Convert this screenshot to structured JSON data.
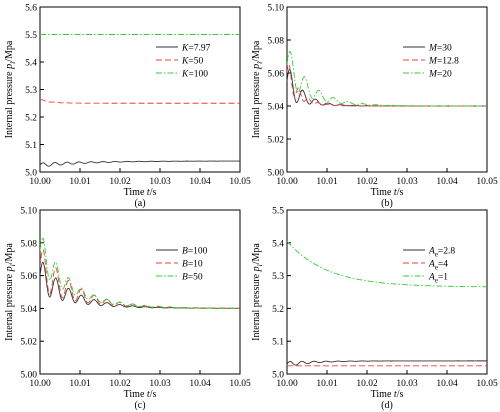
{
  "chart_data": [
    {
      "type": "line",
      "caption": "(a)",
      "xlabel": {
        "pre": "Time ",
        "var": "t",
        "post": "/s"
      },
      "ylabel": {
        "pre": "Internal pressure ",
        "var": "p",
        "sub": "i",
        "post": "/Mpa"
      },
      "xlim": [
        10.0,
        10.05
      ],
      "ylim": [
        5.0,
        5.6
      ],
      "xticks": [
        "10.00",
        "10.01",
        "10.02",
        "10.03",
        "10.04",
        "10.05"
      ],
      "yticks": [
        "5.0",
        "5.1",
        "5.2",
        "5.3",
        "5.4",
        "5.5",
        "5.6"
      ],
      "legend_position": "right-upper",
      "series": [
        {
          "var": "K",
          "val": "7.97",
          "color": "#333333",
          "dash": "",
          "final": 5.04,
          "start": 5.025,
          "amp": 0.008,
          "decay": 0.012,
          "period": 0.003
        },
        {
          "var": "K",
          "val": "50",
          "color": "#e8413c",
          "dash": "6,3",
          "final": 5.25,
          "start": 5.262,
          "amp": 0.003,
          "decay": 0.003,
          "period": 0.003
        },
        {
          "var": "K",
          "val": "100",
          "color": "#33cc33",
          "dash": "6,2,1.5,2",
          "final": 5.5,
          "start": 5.5,
          "amp": 0,
          "decay": 0.003,
          "period": 0.003
        }
      ]
    },
    {
      "type": "line",
      "caption": "(b)",
      "xlabel": {
        "pre": "Time ",
        "var": "t",
        "post": "/s"
      },
      "ylabel": {
        "pre": "Internal pressure ",
        "var": "p",
        "sub": "i",
        "post": "/Mpa"
      },
      "xlim": [
        10.0,
        10.05
      ],
      "ylim": [
        5.0,
        5.1
      ],
      "xticks": [
        "10.00",
        "10.01",
        "10.02",
        "10.03",
        "10.04",
        "10.05"
      ],
      "yticks": [
        "5.00",
        "5.02",
        "5.04",
        "5.06",
        "5.08",
        "5.10"
      ],
      "legend_position": "right-upper",
      "series": [
        {
          "var": "M",
          "val": "30",
          "color": "#333333",
          "dash": "",
          "final": 5.04,
          "start": 5.055,
          "amp": 0.012,
          "decay": 0.004,
          "period": 0.0032
        },
        {
          "var": "M",
          "val": "12.8",
          "color": "#e8413c",
          "dash": "6,3",
          "final": 5.04,
          "start": 5.06,
          "amp": 0.01,
          "decay": 0.003,
          "period": 0.0024
        },
        {
          "var": "M",
          "val": "20",
          "color": "#33cc33",
          "dash": "6,2,1.5,2",
          "final": 5.04,
          "start": 5.065,
          "amp": 0.013,
          "decay": 0.006,
          "period": 0.0036
        }
      ]
    },
    {
      "type": "line",
      "caption": "(c)",
      "xlabel": {
        "pre": "Time ",
        "var": "t",
        "post": "/s"
      },
      "ylabel": {
        "pre": "Internal pressure ",
        "var": "p",
        "sub": "i",
        "post": "/Mpa"
      },
      "xlim": [
        10.0,
        10.05
      ],
      "ylim": [
        5.0,
        5.1
      ],
      "xticks": [
        "10.00",
        "10.01",
        "10.02",
        "10.03",
        "10.04",
        "10.05"
      ],
      "yticks": [
        "5.00",
        "5.02",
        "5.04",
        "5.06",
        "5.08",
        "5.10"
      ],
      "legend_position": "right-upper",
      "series": [
        {
          "var": "B",
          "val": "100",
          "color": "#333333",
          "dash": "",
          "final": 5.04,
          "start": 5.06,
          "amp": 0.011,
          "decay": 0.008,
          "period": 0.0032
        },
        {
          "var": "B",
          "val": "10",
          "color": "#e8413c",
          "dash": "6,3",
          "final": 5.04,
          "start": 5.065,
          "amp": 0.014,
          "decay": 0.009,
          "period": 0.0032
        },
        {
          "var": "B",
          "val": "50",
          "color": "#33cc33",
          "dash": "6,2,1.5,2",
          "final": 5.04,
          "start": 5.075,
          "amp": 0.012,
          "decay": 0.008,
          "period": 0.0032
        }
      ]
    },
    {
      "type": "line",
      "caption": "(d)",
      "xlabel": {
        "pre": "Time ",
        "var": "t",
        "post": "/s"
      },
      "ylabel": {
        "pre": "Internal pressure ",
        "var": "p",
        "sub": "i",
        "post": "/Mpa"
      },
      "xlim": [
        10.0,
        10.05
      ],
      "ylim": [
        5.0,
        5.5
      ],
      "xticks": [
        "10.00",
        "10.01",
        "10.02",
        "10.03",
        "10.04",
        "10.05"
      ],
      "yticks": [
        "5.0",
        "5.1",
        "5.2",
        "5.3",
        "5.4",
        "5.5"
      ],
      "legend_position": "right-upper",
      "series": [
        {
          "var": "A",
          "sub": "e",
          "val": "2.8",
          "color": "#333333",
          "dash": "",
          "final": 5.04,
          "start": 5.03,
          "amp": 0.008,
          "decay": 0.007,
          "period": 0.003
        },
        {
          "var": "A",
          "sub": "e",
          "val": "4",
          "color": "#e8413c",
          "dash": "6,3",
          "final": 5.025,
          "start": 5.025,
          "amp": 0,
          "decay": 0.005,
          "period": 0.003
        },
        {
          "var": "A",
          "sub": "e",
          "val": "1",
          "color": "#33cc33",
          "dash": "6,2,1.5,2",
          "final": 5.265,
          "start": 5.405,
          "amp": 0,
          "decay": 0.01,
          "period": 0.003
        }
      ]
    }
  ]
}
